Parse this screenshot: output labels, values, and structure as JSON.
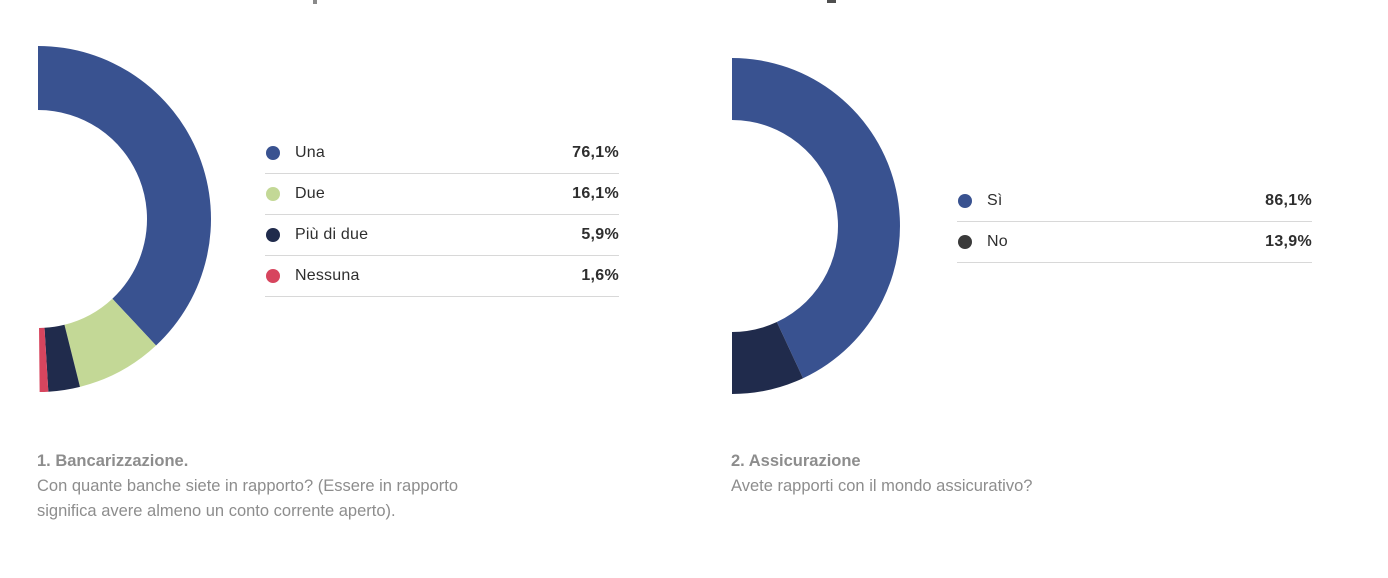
{
  "palette": {
    "background": "#ffffff",
    "accent_blue": "#395290",
    "light_green": "#c3d896",
    "dark_navy": "#202b4c",
    "red": "#d7455e",
    "charcoal": "#3a3a3a",
    "text_dark": "#2e2e2e",
    "caption_gray": "#8d8d8d",
    "separator": "#d8d8d8"
  },
  "chart_data": [
    {
      "type": "donut",
      "variant": "half-donut-right",
      "start": "top",
      "direction": "clockwise",
      "sweep_deg": 180,
      "legend_position": "right",
      "title": "1. Bancarizzazione.",
      "subtitle_lines": [
        "Con quante banche siete in rapporto? (Essere in rapporto",
        "significa avere almeno un conto corrente aperto)."
      ],
      "items": [
        {
          "label": "Una",
          "value": 76.1,
          "display": "76,1%",
          "color": "#395290",
          "dot_color": "#395290"
        },
        {
          "label": "Due",
          "value": 16.1,
          "display": "16,1%",
          "color": "#c3d896",
          "dot_color": "#c3d896"
        },
        {
          "label": "Più di due",
          "value": 5.9,
          "display": "5,9%",
          "color": "#202b4c",
          "dot_color": "#202b4c"
        },
        {
          "label": "Nessuna",
          "value": 1.6,
          "display": "1,6%",
          "color": "#d7455e",
          "dot_color": "#d7455e"
        }
      ]
    },
    {
      "type": "donut",
      "variant": "half-donut-right",
      "start": "top",
      "direction": "clockwise",
      "sweep_deg": 180,
      "legend_position": "right",
      "title": "2. Assicurazione",
      "subtitle_lines": [
        "Avete rapporti con il mondo assicurativo?"
      ],
      "items": [
        {
          "label": "Sì",
          "value": 86.1,
          "display": "86,1%",
          "color": "#395290",
          "dot_color": "#395290"
        },
        {
          "label": "No",
          "value": 13.9,
          "display": "13,9%",
          "color": "#202b4c",
          "dot_color": "#3a3a3a"
        }
      ]
    }
  ]
}
